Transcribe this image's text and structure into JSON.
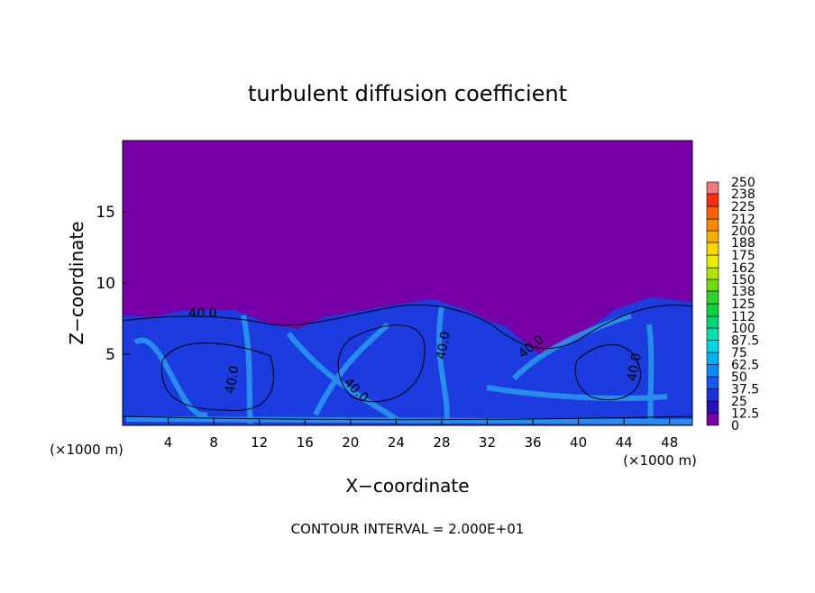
{
  "chart_data": {
    "type": "contour",
    "title": "turbulent diffusion coefficient",
    "xlabel": "X−coordinate",
    "ylabel": "Z−coordinate",
    "xunit": "(×1000 m)",
    "yunit": "(×1000 m)",
    "xlim": [
      0,
      50
    ],
    "xticks": [
      4,
      8,
      12,
      16,
      20,
      24,
      28,
      32,
      36,
      40,
      44,
      48
    ],
    "ylim": [
      0,
      20
    ],
    "yticks": [
      5,
      10,
      15
    ],
    "colorbar_levels": [
      0,
      12.5,
      25,
      37.5,
      50,
      62.5,
      75,
      87.5,
      100,
      112,
      125,
      138,
      150,
      162,
      175,
      188,
      200,
      212,
      225,
      238,
      250
    ],
    "colorbar_colors": [
      "#7800a8",
      "#2a10b8",
      "#1c30d8",
      "#1858f0",
      "#0a88f0",
      "#00b0f0",
      "#00d8e8",
      "#00e0b0",
      "#00d878",
      "#10d040",
      "#30d030",
      "#70dc10",
      "#b0e400",
      "#e8f000",
      "#f8d800",
      "#f8b000",
      "#f88800",
      "#f86000",
      "#f83010",
      "#f07878"
    ],
    "contour_labels": [
      "40.0",
      "40.0",
      "40.0",
      "40.0",
      "40.0",
      "40.0"
    ],
    "footer": "CONTOUR INTERVAL = 2.000E+01"
  }
}
